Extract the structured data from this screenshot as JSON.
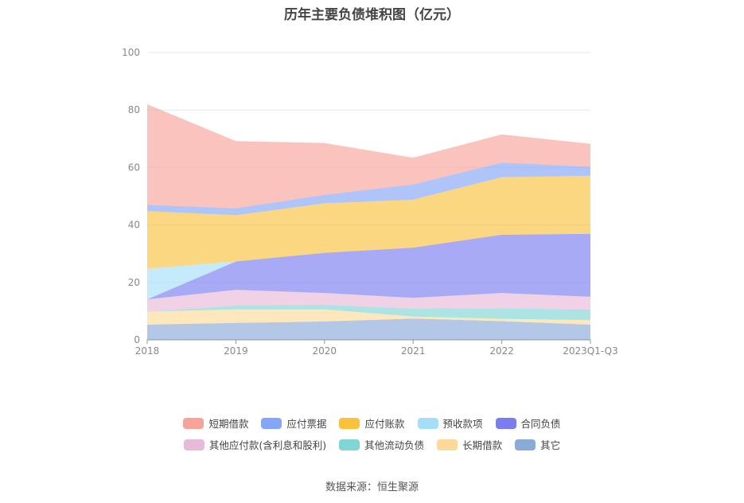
{
  "chart_data": {
    "type": "area",
    "stacked": true,
    "title": "历年主要负债堆积图（亿元）",
    "categories": [
      "2018",
      "2019",
      "2020",
      "2021",
      "2022",
      "2023Q1-Q3"
    ],
    "ylim": [
      0,
      100
    ],
    "yticks": [
      0,
      20,
      40,
      60,
      80,
      100
    ],
    "grid": true,
    "legend_position": "bottom",
    "series": [
      {
        "name": "其它",
        "color": "#8aaad8",
        "values": [
          5.3,
          5.9,
          6.4,
          7.4,
          6.5,
          5.3
        ]
      },
      {
        "name": "长期借款",
        "color": "#fdd999",
        "values": [
          4.5,
          4.7,
          4.2,
          0.7,
          0.8,
          1.6
        ]
      },
      {
        "name": "其他流动负债",
        "color": "#7fd6d5",
        "values": [
          0,
          1.3,
          1.6,
          2.8,
          3.7,
          3.6
        ]
      },
      {
        "name": "其他应付款(含利息和股利)",
        "color": "#e9b9d9",
        "values": [
          4.3,
          5.5,
          4.1,
          3.7,
          5.3,
          4.5
        ]
      },
      {
        "name": "合同负债",
        "color": "#7b7cf0",
        "values": [
          0,
          9.9,
          14.0,
          17.5,
          20.3,
          21.9
        ]
      },
      {
        "name": "预收款项",
        "color": "#a6defa",
        "values": [
          10.7,
          0,
          0,
          0,
          0,
          0
        ]
      },
      {
        "name": "应付账款",
        "color": "#fbc13d",
        "values": [
          20.0,
          16.1,
          17.2,
          16.7,
          20.0,
          20.2
        ]
      },
      {
        "name": "应付票据",
        "color": "#84a6f8",
        "values": [
          2.2,
          2.4,
          3.0,
          5.3,
          5.1,
          3.2
        ]
      },
      {
        "name": "短期借款",
        "color": "#f8a39a",
        "values": [
          35.0,
          23.4,
          18.0,
          9.3,
          9.8,
          7.9
        ]
      }
    ],
    "legend_order": [
      [
        "短期借款",
        "应付票据",
        "应付账款",
        "预收款项",
        "合同负债"
      ],
      [
        "其他应付款(含利息和股利)",
        "其他流动负债",
        "长期借款",
        "其它"
      ]
    ]
  },
  "source": "数据来源：恒生聚源"
}
